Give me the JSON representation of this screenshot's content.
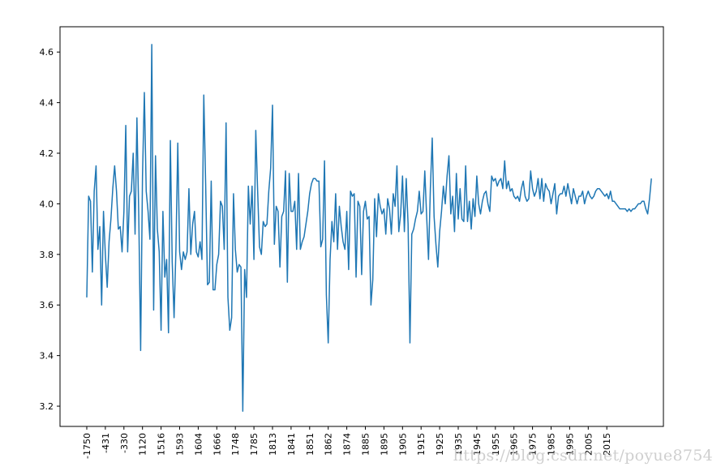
{
  "chart_data": {
    "type": "line",
    "title": "",
    "xlabel": "",
    "ylabel": "",
    "line_color": "#1f77b4",
    "grid": false,
    "legend": "none",
    "ylim": [
      3.12,
      4.7
    ],
    "yticks": [
      3.2,
      3.4,
      3.6,
      3.8,
      4.0,
      4.2,
      4.4,
      4.6
    ],
    "ytick_labels": [
      "3.2",
      "3.4",
      "3.6",
      "3.8",
      "4.0",
      "4.2",
      "4.4",
      "4.6"
    ],
    "xtick_labels": [
      "-1750",
      "-431",
      "-330",
      "1120",
      "1516",
      "1593",
      "1604",
      "1666",
      "1748",
      "1785",
      "1813",
      "1841",
      "1851",
      "1862",
      "1874",
      "1885",
      "1895",
      "1905",
      "1915",
      "1925",
      "1935",
      "1945",
      "1955",
      "1965",
      "1975",
      "1985",
      "1995",
      "2005",
      "2015"
    ],
    "x_start_tick_index": 0,
    "x_step_per_point": 0.1,
    "series": [
      {
        "values": [
          3.63,
          4.03,
          4.01,
          3.73,
          4.05,
          4.15,
          3.82,
          3.91,
          3.6,
          3.97,
          3.8,
          3.67,
          3.85,
          3.94,
          4.06,
          4.15,
          4.05,
          3.9,
          3.91,
          3.81,
          3.97,
          4.31,
          3.81,
          4.03,
          4.05,
          4.2,
          3.88,
          4.34,
          3.95,
          3.42,
          4.11,
          4.44,
          4.05,
          3.97,
          3.86,
          4.63,
          3.58,
          4.19,
          3.9,
          3.81,
          3.5,
          3.97,
          3.71,
          3.78,
          3.49,
          4.25,
          3.77,
          3.55,
          3.82,
          4.24,
          3.81,
          3.74,
          3.81,
          3.78,
          3.81,
          4.06,
          3.8,
          3.92,
          3.97,
          3.81,
          3.79,
          3.85,
          3.78,
          4.43,
          4.08,
          3.68,
          3.69,
          4.09,
          3.66,
          3.66,
          3.76,
          3.8,
          4.01,
          3.99,
          3.82,
          4.32,
          3.63,
          3.5,
          3.55,
          4.04,
          3.82,
          3.73,
          3.76,
          3.75,
          3.18,
          3.74,
          3.63,
          4.07,
          3.92,
          4.07,
          3.78,
          4.29,
          4.05,
          3.83,
          3.8,
          3.93,
          3.91,
          3.92,
          4.05,
          4.14,
          4.39,
          3.84,
          3.99,
          3.97,
          3.75,
          3.95,
          3.97,
          4.13,
          3.69,
          4.12,
          3.97,
          3.97,
          4.01,
          3.82,
          4.12,
          3.82,
          3.85,
          3.87,
          3.92,
          3.97,
          4.04,
          4.08,
          4.1,
          4.1,
          4.09,
          4.09,
          3.83,
          3.86,
          4.17,
          3.64,
          3.45,
          3.78,
          3.93,
          3.85,
          4.04,
          3.82,
          3.99,
          3.91,
          3.85,
          3.82,
          3.97,
          3.74,
          4.05,
          4.03,
          4.04,
          3.71,
          4.01,
          3.99,
          3.72,
          3.97,
          4.01,
          3.94,
          3.95,
          3.6,
          3.7,
          4.02,
          3.87,
          4.04,
          3.99,
          3.96,
          3.98,
          3.88,
          4.02,
          3.98,
          3.88,
          4.04,
          3.99,
          4.15,
          3.89,
          3.96,
          4.11,
          3.89,
          4.1,
          3.92,
          3.45,
          3.88,
          3.9,
          3.94,
          3.97,
          4.05,
          3.96,
          3.97,
          4.13,
          3.95,
          3.78,
          4.06,
          4.26,
          3.95,
          3.84,
          3.75,
          3.89,
          3.97,
          4.07,
          4.0,
          4.11,
          4.19,
          3.96,
          4.03,
          3.89,
          4.12,
          3.94,
          4.06,
          3.94,
          3.93,
          4.15,
          3.93,
          4.01,
          3.9,
          4.02,
          3.95,
          4.11,
          4.0,
          3.96,
          4.01,
          4.04,
          4.05,
          4.0,
          3.97,
          4.11,
          4.09,
          4.1,
          4.07,
          4.09,
          4.1,
          4.06,
          4.17,
          4.06,
          4.09,
          4.05,
          4.06,
          4.03,
          4.02,
          4.03,
          4.01,
          4.06,
          4.09,
          4.03,
          4.01,
          4.02,
          4.13,
          4.06,
          4.03,
          4.05,
          4.1,
          4.02,
          4.1,
          4.01,
          4.08,
          4.06,
          4.05,
          4.0,
          4.04,
          4.08,
          3.96,
          4.03,
          4.04,
          4.04,
          4.07,
          4.03,
          4.08,
          4.04,
          4.0,
          4.06,
          4.03,
          4.0,
          4.03,
          4.03,
          4.05,
          4.0,
          4.03,
          4.05,
          4.03,
          4.02,
          4.03,
          4.05,
          4.06,
          4.06,
          4.05,
          4.04,
          4.03,
          4.04,
          4.02,
          4.05,
          4.01,
          4.01,
          4.0,
          3.99,
          3.98,
          3.98,
          3.98,
          3.98,
          3.97,
          3.98,
          3.97,
          3.98,
          3.98,
          3.99,
          4.0,
          4.0,
          4.01,
          4.01,
          3.98,
          3.96,
          4.02,
          4.1
        ]
      }
    ]
  },
  "watermark": "https://blog.csdn.net/poyue8754"
}
